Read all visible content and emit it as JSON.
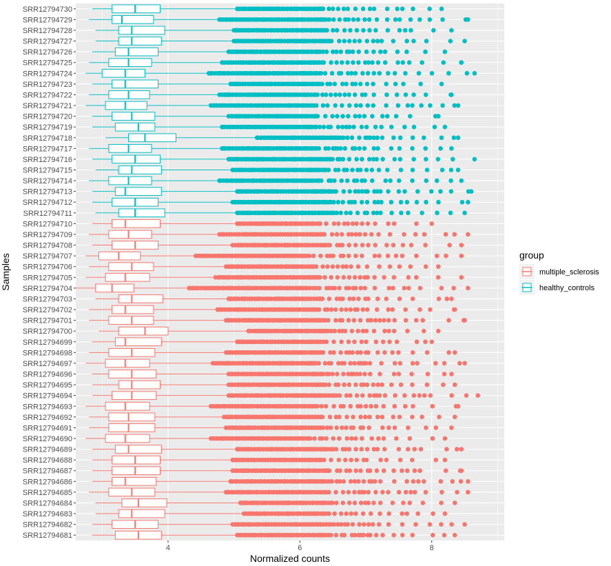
{
  "chart_data": {
    "type": "boxplot",
    "orientation": "horizontal",
    "xlabel": "Normalized counts",
    "ylabel": "Samples",
    "xlim": [
      2.6,
      9.1
    ],
    "x_ticks": [
      4,
      6,
      8
    ],
    "grid": true,
    "legend": {
      "title": "group",
      "placement": "right",
      "entries": [
        {
          "name": "multiple_sclerosis",
          "color": "#F8766D"
        },
        {
          "name": "healthy_controls",
          "color": "#00BFC4"
        }
      ]
    },
    "colors": {
      "multiple_sclerosis": "#F8766D",
      "healthy_controls": "#00BFC4"
    },
    "samples": [
      {
        "id": "SRR12794730",
        "group": "healthy_controls",
        "wlo": 2.85,
        "q1": 3.15,
        "med": 3.5,
        "q3": 3.88,
        "whi": 5.05,
        "out_start": 5.05,
        "out_max": 8.15
      },
      {
        "id": "SRR12794729",
        "group": "healthy_controls",
        "wlo": 2.8,
        "q1": 3.15,
        "med": 3.3,
        "q3": 3.78,
        "whi": 4.78,
        "out_start": 4.78,
        "out_max": 8.55
      },
      {
        "id": "SRR12794728",
        "group": "healthy_controls",
        "wlo": 2.9,
        "q1": 3.25,
        "med": 3.45,
        "q3": 3.95,
        "whi": 5.0,
        "out_start": 5.0,
        "out_max": 8.3
      },
      {
        "id": "SRR12794727",
        "group": "healthy_controls",
        "wlo": 2.9,
        "q1": 3.25,
        "med": 3.45,
        "q3": 3.9,
        "whi": 5.0,
        "out_start": 5.0,
        "out_max": 8.5
      },
      {
        "id": "SRR12794726",
        "group": "healthy_controls",
        "wlo": 2.85,
        "q1": 3.2,
        "med": 3.4,
        "q3": 3.85,
        "whi": 4.92,
        "out_start": 4.92,
        "out_max": 8.2
      },
      {
        "id": "SRR12794725",
        "group": "healthy_controls",
        "wlo": 2.8,
        "q1": 3.1,
        "med": 3.4,
        "q3": 3.75,
        "whi": 4.82,
        "out_start": 4.82,
        "out_max": 8.45
      },
      {
        "id": "SRR12794724",
        "group": "healthy_controls",
        "wlo": 2.75,
        "q1": 3.0,
        "med": 3.35,
        "q3": 3.65,
        "whi": 4.62,
        "out_start": 4.62,
        "out_max": 8.65
      },
      {
        "id": "SRR12794723",
        "group": "healthy_controls",
        "wlo": 2.85,
        "q1": 3.15,
        "med": 3.35,
        "q3": 3.85,
        "whi": 4.95,
        "out_start": 4.95,
        "out_max": 8.15
      },
      {
        "id": "SRR12794722",
        "group": "healthy_controls",
        "wlo": 2.8,
        "q1": 3.1,
        "med": 3.4,
        "q3": 3.72,
        "whi": 4.78,
        "out_start": 4.78,
        "out_max": 8.3
      },
      {
        "id": "SRR12794721",
        "group": "healthy_controls",
        "wlo": 2.75,
        "q1": 3.05,
        "med": 3.35,
        "q3": 3.68,
        "whi": 4.65,
        "out_start": 4.65,
        "out_max": 8.4
      },
      {
        "id": "SRR12794720",
        "group": "healthy_controls",
        "wlo": 2.85,
        "q1": 3.15,
        "med": 3.45,
        "q3": 3.8,
        "whi": 4.92,
        "out_start": 4.92,
        "out_max": 8.1
      },
      {
        "id": "SRR12794719",
        "group": "healthy_controls",
        "wlo": 2.85,
        "q1": 3.2,
        "med": 3.55,
        "q3": 3.8,
        "whi": 4.82,
        "out_start": 4.82,
        "out_max": 8.2
      },
      {
        "id": "SRR12794718",
        "group": "healthy_controls",
        "wlo": 3.05,
        "q1": 3.4,
        "med": 3.65,
        "q3": 4.12,
        "whi": 5.35,
        "out_start": 5.35,
        "out_max": 8.4
      },
      {
        "id": "SRR12794717",
        "group": "healthy_controls",
        "wlo": 2.8,
        "q1": 3.1,
        "med": 3.4,
        "q3": 3.75,
        "whi": 4.82,
        "out_start": 4.82,
        "out_max": 8.3
      },
      {
        "id": "SRR12794716",
        "group": "healthy_controls",
        "wlo": 2.85,
        "q1": 3.15,
        "med": 3.5,
        "q3": 3.88,
        "whi": 4.92,
        "out_start": 4.92,
        "out_max": 8.65
      },
      {
        "id": "SRR12794715",
        "group": "healthy_controls",
        "wlo": 2.9,
        "q1": 3.25,
        "med": 3.45,
        "q3": 3.9,
        "whi": 4.98,
        "out_start": 4.98,
        "out_max": 8.4
      },
      {
        "id": "SRR12794714",
        "group": "healthy_controls",
        "wlo": 2.8,
        "q1": 3.1,
        "med": 3.4,
        "q3": 3.75,
        "whi": 4.78,
        "out_start": 4.78,
        "out_max": 8.45
      },
      {
        "id": "SRR12794713",
        "group": "healthy_controls",
        "wlo": 2.85,
        "q1": 3.2,
        "med": 3.35,
        "q3": 3.9,
        "whi": 5.05,
        "out_start": 5.05,
        "out_max": 8.6
      },
      {
        "id": "SRR12794712",
        "group": "healthy_controls",
        "wlo": 2.85,
        "q1": 3.15,
        "med": 3.5,
        "q3": 3.85,
        "whi": 4.98,
        "out_start": 4.98,
        "out_max": 8.55
      },
      {
        "id": "SRR12794711",
        "group": "healthy_controls",
        "wlo": 2.9,
        "q1": 3.25,
        "med": 3.5,
        "q3": 3.95,
        "whi": 5.05,
        "out_start": 5.05,
        "out_max": 8.5
      },
      {
        "id": "SRR12794710",
        "group": "multiple_sclerosis",
        "wlo": 2.85,
        "q1": 3.15,
        "med": 3.35,
        "q3": 3.88,
        "whi": 5.05,
        "out_start": 5.05,
        "out_max": 8.0
      },
      {
        "id": "SRR12794709",
        "group": "multiple_sclerosis",
        "wlo": 2.8,
        "q1": 3.1,
        "med": 3.4,
        "q3": 3.75,
        "whi": 4.78,
        "out_start": 4.78,
        "out_max": 8.55
      },
      {
        "id": "SRR12794708",
        "group": "multiple_sclerosis",
        "wlo": 2.85,
        "q1": 3.15,
        "med": 3.5,
        "q3": 3.85,
        "whi": 4.98,
        "out_start": 4.98,
        "out_max": 8.45
      },
      {
        "id": "SRR12794707",
        "group": "multiple_sclerosis",
        "wlo": 2.75,
        "q1": 2.95,
        "med": 3.25,
        "q3": 3.58,
        "whi": 4.42,
        "out_start": 4.42,
        "out_max": 8.45
      },
      {
        "id": "SRR12794706",
        "group": "multiple_sclerosis",
        "wlo": 2.8,
        "q1": 3.1,
        "med": 3.45,
        "q3": 3.78,
        "whi": 4.88,
        "out_start": 4.88,
        "out_max": 8.1
      },
      {
        "id": "SRR12794705",
        "group": "multiple_sclerosis",
        "wlo": 2.75,
        "q1": 3.05,
        "med": 3.35,
        "q3": 3.72,
        "whi": 4.72,
        "out_start": 4.72,
        "out_max": 8.45
      },
      {
        "id": "SRR12794704",
        "group": "multiple_sclerosis",
        "wlo": 2.6,
        "q1": 2.9,
        "med": 3.15,
        "q3": 3.48,
        "whi": 4.32,
        "out_start": 4.32,
        "out_max": 8.55
      },
      {
        "id": "SRR12794703",
        "group": "multiple_sclerosis",
        "wlo": 2.9,
        "q1": 3.25,
        "med": 3.45,
        "q3": 3.92,
        "whi": 4.92,
        "out_start": 4.92,
        "out_max": 8.3
      },
      {
        "id": "SRR12794702",
        "group": "multiple_sclerosis",
        "wlo": 2.8,
        "q1": 3.15,
        "med": 3.35,
        "q3": 3.78,
        "whi": 4.75,
        "out_start": 4.75,
        "out_max": 8.35
      },
      {
        "id": "SRR12794701",
        "group": "multiple_sclerosis",
        "wlo": 2.8,
        "q1": 3.1,
        "med": 3.45,
        "q3": 3.78,
        "whi": 4.88,
        "out_start": 4.88,
        "out_max": 8.5
      },
      {
        "id": "SRR12794700",
        "group": "multiple_sclerosis",
        "wlo": 2.95,
        "q1": 3.25,
        "med": 3.65,
        "q3": 4.0,
        "whi": 5.22,
        "out_start": 5.22,
        "out_max": 8.1
      },
      {
        "id": "SRR12794699",
        "group": "multiple_sclerosis",
        "wlo": 2.85,
        "q1": 3.2,
        "med": 3.35,
        "q3": 3.9,
        "whi": 5.05,
        "out_start": 5.05,
        "out_max": 8.0
      },
      {
        "id": "SRR12794698",
        "group": "multiple_sclerosis",
        "wlo": 2.8,
        "q1": 3.1,
        "med": 3.45,
        "q3": 3.8,
        "whi": 4.88,
        "out_start": 4.88,
        "out_max": 8.35
      },
      {
        "id": "SRR12794697",
        "group": "multiple_sclerosis",
        "wlo": 2.75,
        "q1": 3.05,
        "med": 3.35,
        "q3": 3.72,
        "whi": 4.68,
        "out_start": 4.68,
        "out_max": 8.5
      },
      {
        "id": "SRR12794696",
        "group": "multiple_sclerosis",
        "wlo": 2.85,
        "q1": 3.1,
        "med": 3.45,
        "q3": 3.82,
        "whi": 4.92,
        "out_start": 4.92,
        "out_max": 8.3
      },
      {
        "id": "SRR12794695",
        "group": "multiple_sclerosis",
        "wlo": 2.85,
        "q1": 3.25,
        "med": 3.45,
        "q3": 3.88,
        "whi": 4.92,
        "out_start": 4.92,
        "out_max": 8.35
      },
      {
        "id": "SRR12794694",
        "group": "multiple_sclerosis",
        "wlo": 2.85,
        "q1": 3.15,
        "med": 3.45,
        "q3": 3.82,
        "whi": 4.92,
        "out_start": 4.92,
        "out_max": 8.7
      },
      {
        "id": "SRR12794693",
        "group": "multiple_sclerosis",
        "wlo": 2.75,
        "q1": 3.05,
        "med": 3.35,
        "q3": 3.72,
        "whi": 4.65,
        "out_start": 4.65,
        "out_max": 8.4
      },
      {
        "id": "SRR12794692",
        "group": "multiple_sclerosis",
        "wlo": 2.8,
        "q1": 3.1,
        "med": 3.4,
        "q3": 3.8,
        "whi": 4.85,
        "out_start": 4.85,
        "out_max": 8.35
      },
      {
        "id": "SRR12794691",
        "group": "multiple_sclerosis",
        "wlo": 2.8,
        "q1": 3.1,
        "med": 3.4,
        "q3": 3.8,
        "whi": 4.88,
        "out_start": 4.88,
        "out_max": 8.3
      },
      {
        "id": "SRR12794690",
        "group": "multiple_sclerosis",
        "wlo": 2.75,
        "q1": 3.05,
        "med": 3.35,
        "q3": 3.72,
        "whi": 4.65,
        "out_start": 4.65,
        "out_max": 8.2
      },
      {
        "id": "SRR12794689",
        "group": "multiple_sclerosis",
        "wlo": 2.85,
        "q1": 3.2,
        "med": 3.4,
        "q3": 3.9,
        "whi": 5.05,
        "out_start": 5.05,
        "out_max": 8.45
      },
      {
        "id": "SRR12794688",
        "group": "multiple_sclerosis",
        "wlo": 2.85,
        "q1": 3.15,
        "med": 3.5,
        "q3": 3.88,
        "whi": 4.98,
        "out_start": 4.98,
        "out_max": 8.2
      },
      {
        "id": "SRR12794687",
        "group": "multiple_sclerosis",
        "wlo": 2.85,
        "q1": 3.15,
        "med": 3.5,
        "q3": 3.88,
        "whi": 4.98,
        "out_start": 4.98,
        "out_max": 8.45
      },
      {
        "id": "SRR12794686",
        "group": "multiple_sclerosis",
        "wlo": 2.85,
        "q1": 3.15,
        "med": 3.35,
        "q3": 3.82,
        "whi": 4.95,
        "out_start": 4.95,
        "out_max": 8.55
      },
      {
        "id": "SRR12794685",
        "group": "multiple_sclerosis",
        "wlo": 2.8,
        "q1": 3.1,
        "med": 3.45,
        "q3": 3.8,
        "whi": 4.88,
        "out_start": 4.88,
        "out_max": 8.55
      },
      {
        "id": "SRR12794684",
        "group": "multiple_sclerosis",
        "wlo": 2.9,
        "q1": 3.3,
        "med": 3.55,
        "q3": 3.98,
        "whi": 5.1,
        "out_start": 5.1,
        "out_max": 8.35
      },
      {
        "id": "SRR12794683",
        "group": "multiple_sclerosis",
        "wlo": 2.9,
        "q1": 3.25,
        "med": 3.45,
        "q3": 3.95,
        "whi": 5.15,
        "out_start": 5.15,
        "out_max": 8.2
      },
      {
        "id": "SRR12794682",
        "group": "multiple_sclerosis",
        "wlo": 2.85,
        "q1": 3.15,
        "med": 3.5,
        "q3": 3.85,
        "whi": 4.98,
        "out_start": 4.98,
        "out_max": 8.5
      },
      {
        "id": "SRR12794681",
        "group": "multiple_sclerosis",
        "wlo": 2.85,
        "q1": 3.2,
        "med": 3.55,
        "q3": 3.9,
        "whi": 5.05,
        "out_start": 5.05,
        "out_max": 8.35
      }
    ]
  }
}
